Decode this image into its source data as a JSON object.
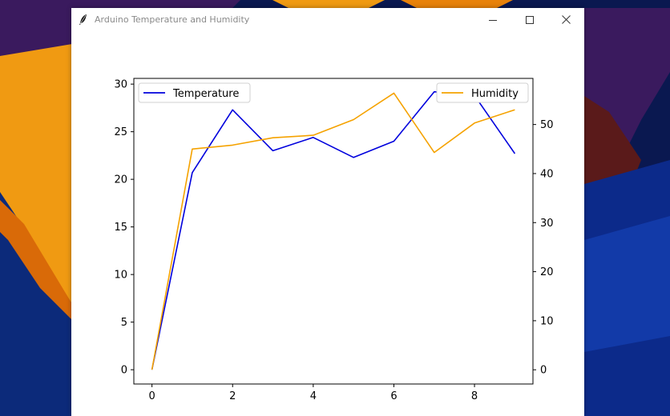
{
  "window": {
    "title": "Arduino Temperature and Humidity"
  },
  "colors": {
    "temperature": "#0000dd",
    "humidity": "#f5a200"
  },
  "chart_data": {
    "type": "line",
    "x": [
      0,
      1,
      2,
      3,
      4,
      5,
      6,
      7,
      8,
      9
    ],
    "xticks": [
      "0",
      "2",
      "4",
      "6",
      "8"
    ],
    "yticks_left": [
      "0",
      "5",
      "10",
      "15",
      "20",
      "25",
      "30"
    ],
    "yticks_right": [
      "0",
      "10",
      "20",
      "30",
      "40",
      "50"
    ],
    "ylim_left": [
      -1.5,
      30.6
    ],
    "ylim_right": [
      -2.9,
      59.4
    ],
    "xlim": [
      -0.45,
      9.45
    ],
    "grid": false,
    "series": [
      {
        "name": "Temperature",
        "axis": "left",
        "values": [
          0,
          20.7,
          27.3,
          23.0,
          24.4,
          22.3,
          24.0,
          29.2,
          28.8,
          22.7
        ]
      },
      {
        "name": "Humidity",
        "axis": "right",
        "values": [
          0,
          45.0,
          45.8,
          47.3,
          47.8,
          51.0,
          56.4,
          44.3,
          50.3,
          53.0
        ]
      }
    ],
    "legends": [
      {
        "series": "Temperature",
        "placement": "upper-left"
      },
      {
        "series": "Humidity",
        "placement": "upper-right"
      }
    ]
  }
}
